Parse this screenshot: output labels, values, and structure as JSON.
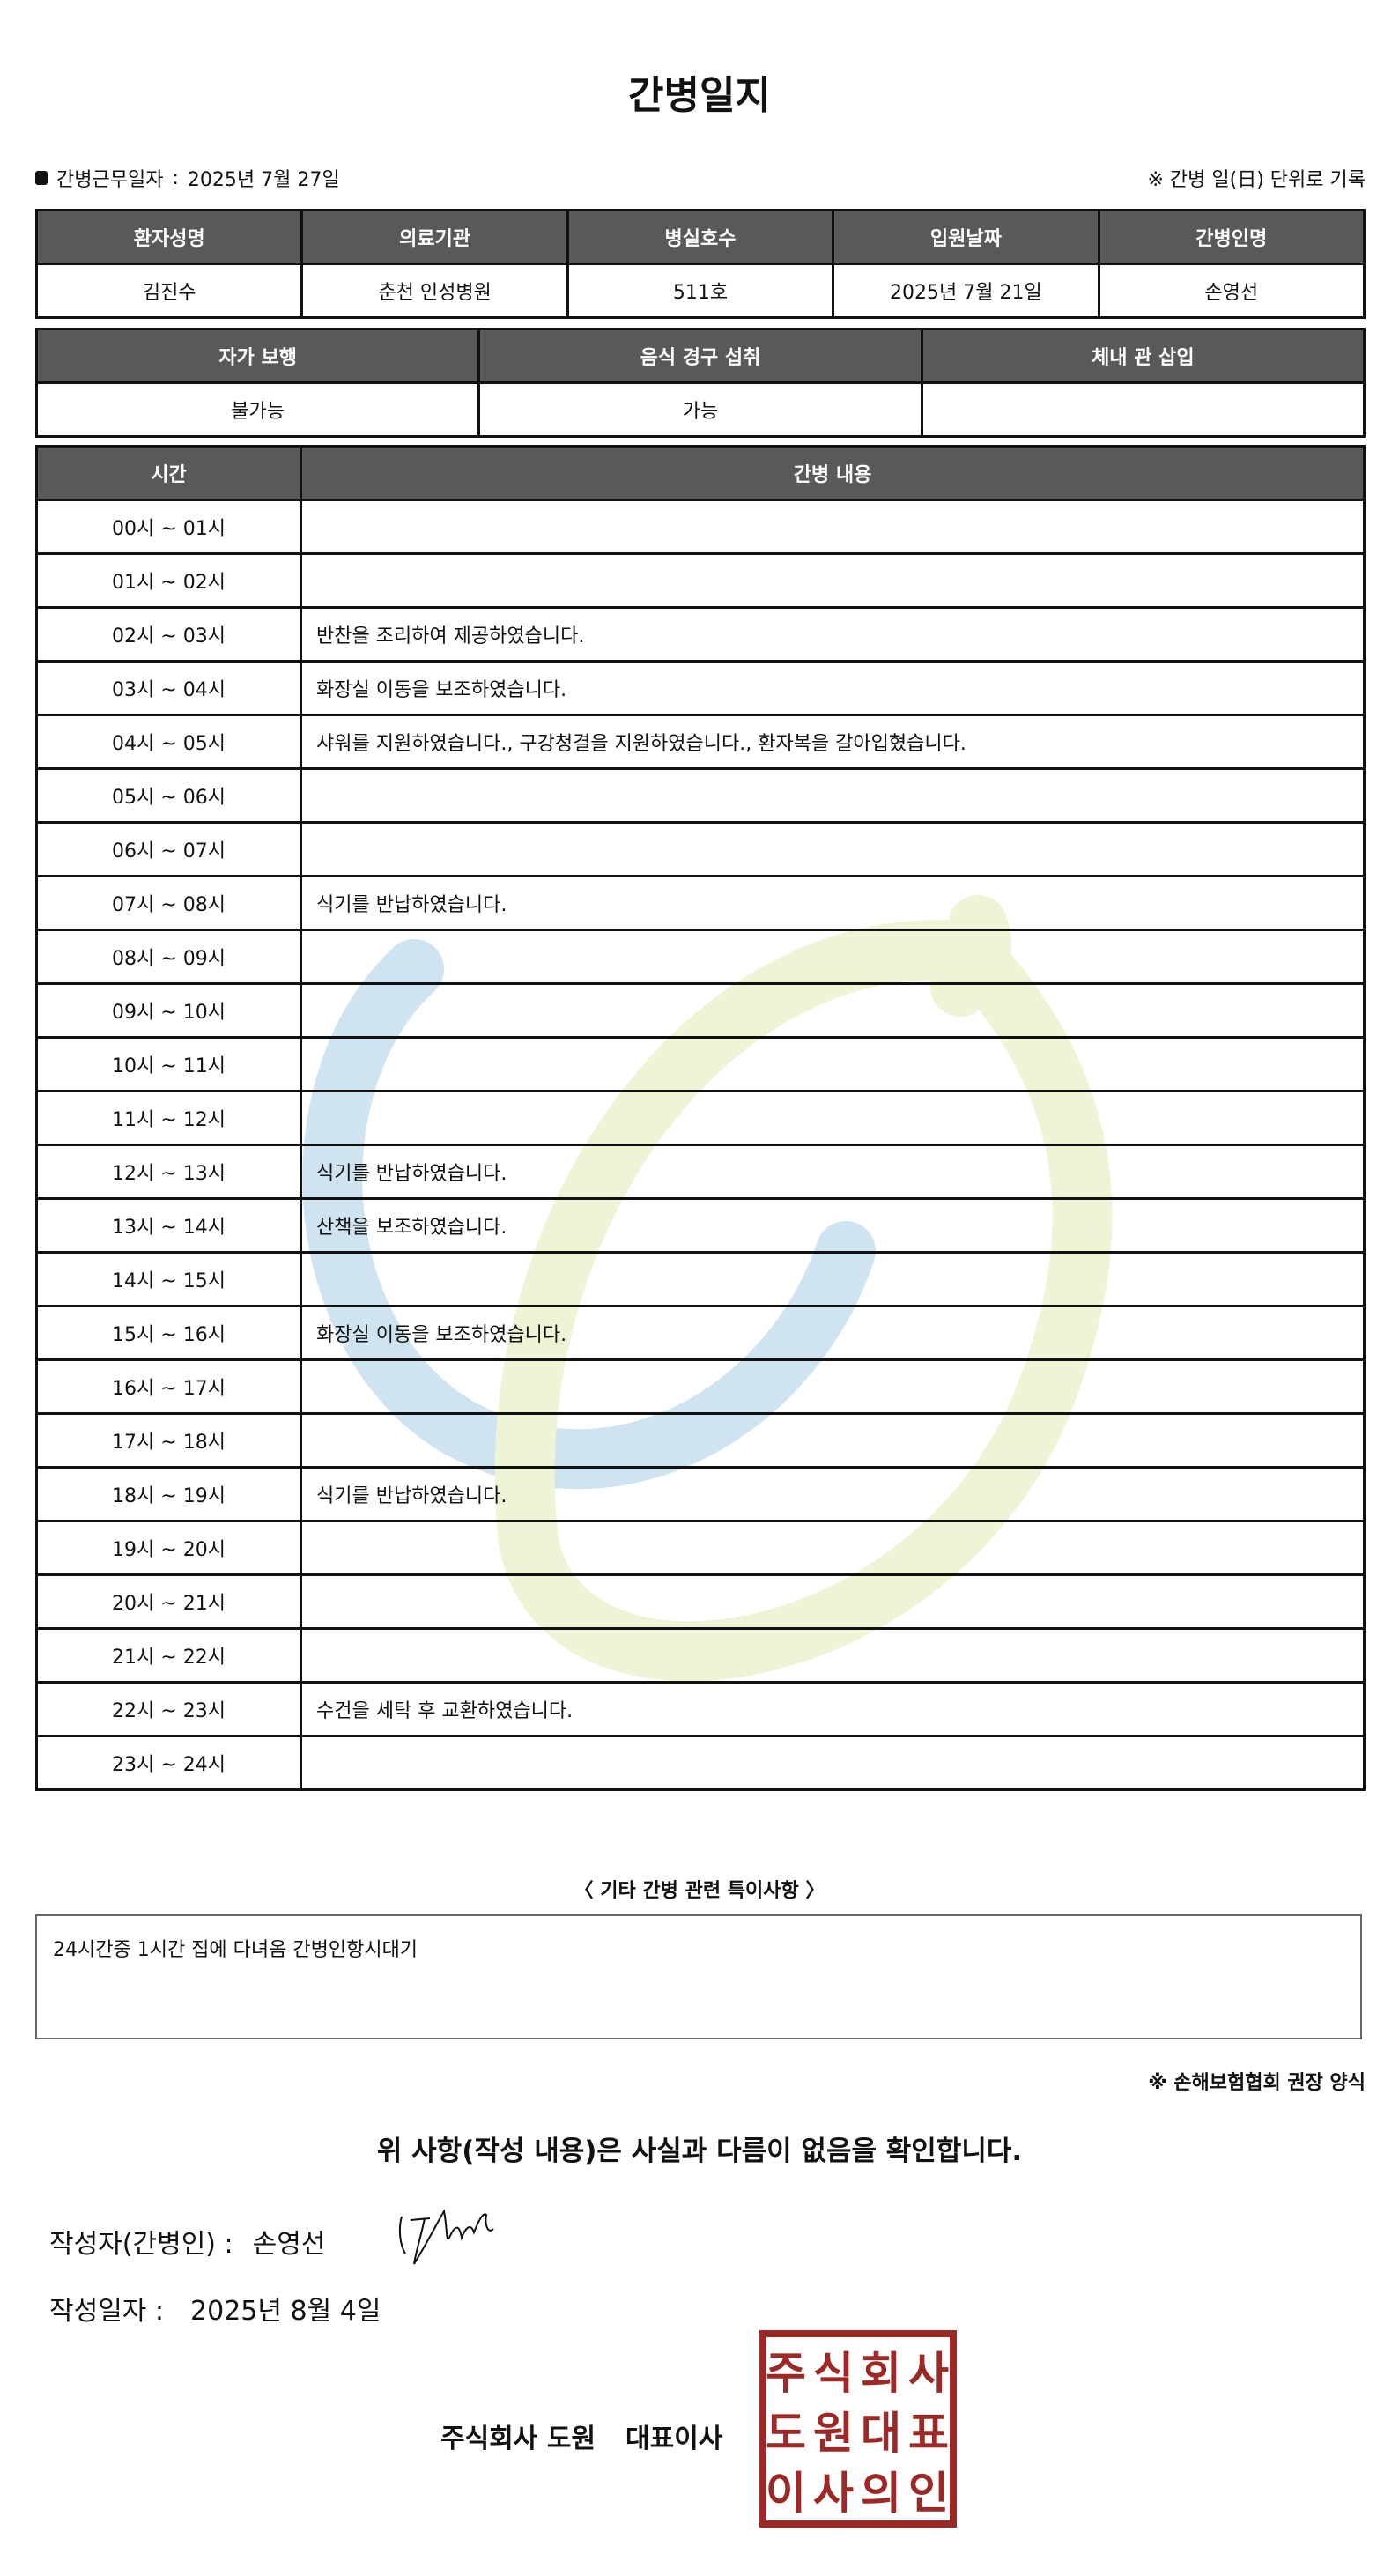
{
  "title": "간병일지",
  "work_date": {
    "label": "간병근무일자",
    "separator": ":",
    "value": "2025년 7월 27일"
  },
  "unit_note": "※ 간병 일(日) 단위로 기록",
  "patient_info": {
    "headers": [
      "환자성명",
      "의료기관",
      "병실호수",
      "입원날짜",
      "간병인명"
    ],
    "values": [
      "김진수",
      "춘천 인성병원",
      "511호",
      "2025년 7월 21일",
      "손영선"
    ]
  },
  "status_info": {
    "headers": [
      "자가 보행",
      "음식 경구 섭취",
      "체내 관 삽입"
    ],
    "values": [
      "불가능",
      "가능",
      ""
    ]
  },
  "log": {
    "headers": [
      "시간",
      "간병 내용"
    ],
    "rows": [
      {
        "time": "00시 ~ 01시",
        "content": ""
      },
      {
        "time": "01시 ~ 02시",
        "content": ""
      },
      {
        "time": "02시 ~ 03시",
        "content": "반찬을 조리하여 제공하였습니다."
      },
      {
        "time": "03시 ~ 04시",
        "content": "화장실 이동을 보조하였습니다."
      },
      {
        "time": "04시 ~ 05시",
        "content": "샤워를 지원하였습니다., 구강청결을 지원하였습니다., 환자복을 갈아입혔습니다."
      },
      {
        "time": "05시 ~ 06시",
        "content": ""
      },
      {
        "time": "06시 ~ 07시",
        "content": ""
      },
      {
        "time": "07시 ~ 08시",
        "content": "식기를 반납하였습니다."
      },
      {
        "time": "08시 ~ 09시",
        "content": ""
      },
      {
        "time": "09시 ~ 10시",
        "content": ""
      },
      {
        "time": "10시 ~ 11시",
        "content": ""
      },
      {
        "time": "11시 ~ 12시",
        "content": ""
      },
      {
        "time": "12시 ~ 13시",
        "content": "식기를 반납하였습니다."
      },
      {
        "time": "13시 ~ 14시",
        "content": "산책을 보조하였습니다."
      },
      {
        "time": "14시 ~ 15시",
        "content": ""
      },
      {
        "time": "15시 ~ 16시",
        "content": "화장실 이동을 보조하였습니다."
      },
      {
        "time": "16시 ~ 17시",
        "content": ""
      },
      {
        "time": "17시 ~ 18시",
        "content": ""
      },
      {
        "time": "18시 ~ 19시",
        "content": "식기를 반납하였습니다."
      },
      {
        "time": "19시 ~ 20시",
        "content": ""
      },
      {
        "time": "20시 ~ 21시",
        "content": ""
      },
      {
        "time": "21시 ~ 22시",
        "content": ""
      },
      {
        "time": "22시 ~ 23시",
        "content": "수건을 세탁 후 교환하였습니다."
      },
      {
        "time": "23시 ~ 24시",
        "content": ""
      }
    ]
  },
  "notes": {
    "title": "〈 기타 간병 관련 특이사항 〉",
    "content": "24시간중 1시간  집에 다녀옴 간병인항시대기"
  },
  "form_note": "※ 손해보험협회 권장 양식",
  "confirmation": "위 사항(작성 내용)은 사실과 다름이 없음을 확인합니다.",
  "author": {
    "label": "작성자(간병인) :",
    "name": "손영선"
  },
  "written_date": {
    "label": "작성일자 :",
    "value": "2025년 8월 4일"
  },
  "company": {
    "name": "주식회사 도원",
    "title": "대표이사"
  },
  "stamp": {
    "text": [
      "주식회사",
      "도원대표",
      "이사의인"
    ],
    "color": "#9b2a26"
  },
  "colors": {
    "header_bg": "#595959",
    "watermark_blue": "#cfe3f1",
    "watermark_green": "#eef4d6"
  }
}
